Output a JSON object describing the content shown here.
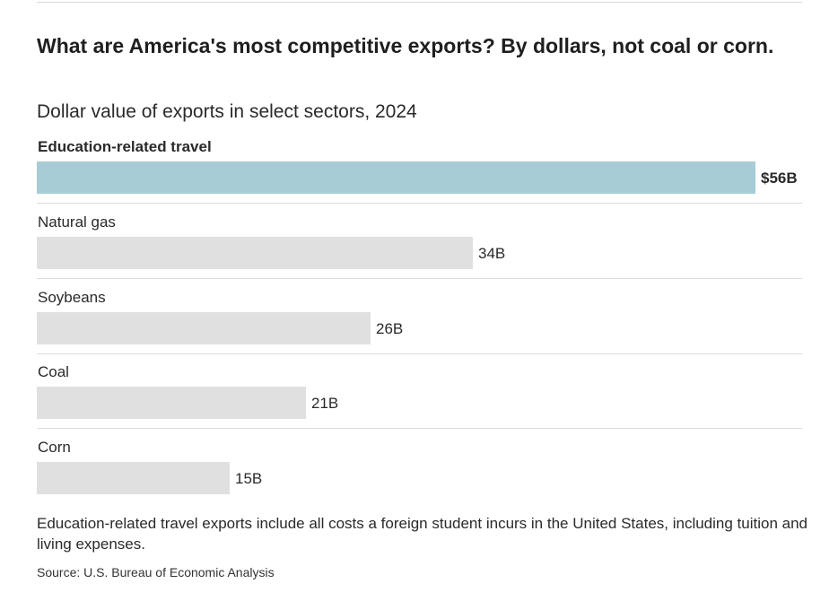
{
  "header": {
    "title": "What are America's most competitive exports? By dollars, not coal or corn.",
    "subtitle": "Dollar value of exports in select sectors, 2024"
  },
  "footer": {
    "note": "Education-related travel exports include all costs a foreign student incurs in the United States, including tuition and living expenses.",
    "source": "Source: U.S. Bureau of Economic Analysis"
  },
  "colors": {
    "highlight_bar": "#a8ccd5",
    "default_bar": "#e0e0e0"
  },
  "chart_data": {
    "type": "bar",
    "orientation": "horizontal",
    "title": "What are America's most competitive exports? By dollars, not coal or corn.",
    "subtitle": "Dollar value of exports in select sectors, 2024",
    "unit": "billions of US dollars",
    "xlabel": "",
    "ylabel": "",
    "xlim": [
      0,
      56
    ],
    "grid": false,
    "legend": "none",
    "categories": [
      "Education-related travel",
      "Natural gas",
      "Soybeans",
      "Coal",
      "Corn"
    ],
    "values": [
      56,
      34,
      26,
      21,
      15
    ],
    "value_labels": [
      "$56B",
      "34B",
      "26B",
      "21B",
      "15B"
    ],
    "highlight": [
      true,
      false,
      false,
      false,
      false
    ]
  }
}
